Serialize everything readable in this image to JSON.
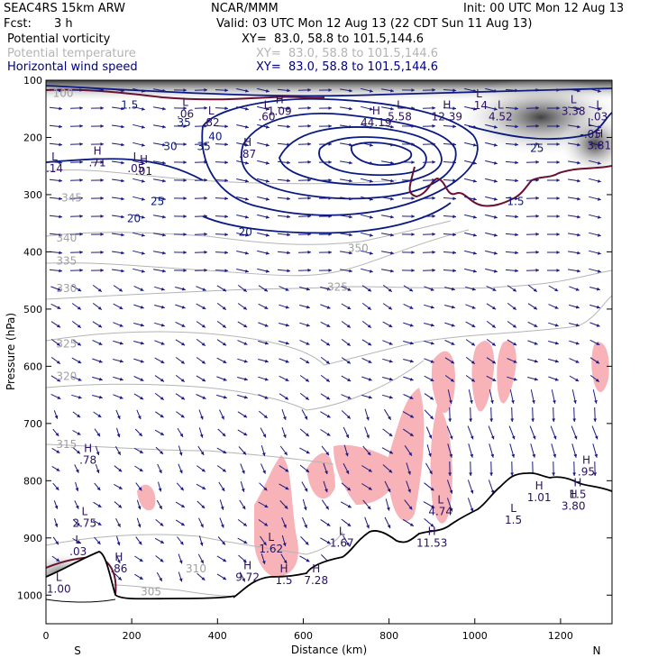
{
  "header": {
    "model": "SEAC4RS 15km ARW",
    "org": "NCAR/MMM",
    "init": "Init: 00 UTC Mon 12 Aug 13",
    "fcst_label": "Fcst:",
    "fcst_value": "3 h",
    "valid": "Valid: 03 UTC Mon 12 Aug 13 (22 CDT Sun 11 Aug 13)",
    "fields": [
      {
        "name": "Potential vorticity",
        "xy": "XY=  83.0, 58.8 to 101.5,144.6",
        "color": "#000000"
      },
      {
        "name": "Potential temperature",
        "xy": "XY=  83.0, 58.8 to 101.5,144.6",
        "color": "#b4b4b4"
      },
      {
        "name": "Horizontal wind speed",
        "xy": "XY=  83.0, 58.8 to 101.5,144.6",
        "color": "#000080"
      }
    ]
  },
  "chart_data": {
    "type": "cross-section",
    "xlabel": "Distance (km)",
    "ylabel": "Pressure (hPa)",
    "xlim": [
      0,
      1320
    ],
    "ylim": [
      1050,
      100
    ],
    "x_ticks": [
      0,
      200,
      400,
      600,
      800,
      1000,
      1200
    ],
    "y_ticks": [
      100,
      200,
      300,
      400,
      500,
      600,
      700,
      800,
      900,
      1000
    ],
    "end_labels": {
      "left": "S",
      "right": "N"
    },
    "colors": {
      "wind_contour": "#0a1a80",
      "theta_contour": "#b4b4b4",
      "pv_contour": "#6a1030",
      "pv_fill": "#f7b3b8",
      "terrain": "#000000",
      "arrow": "#1a1a80"
    },
    "wind_speed_labels": [
      {
        "x": 195,
        "p": 150,
        "text": "1.5"
      },
      {
        "x": 290,
        "p": 222,
        "text": "30"
      },
      {
        "x": 322,
        "p": 180,
        "text": "35"
      },
      {
        "x": 368,
        "p": 222,
        "text": "35"
      },
      {
        "x": 395,
        "p": 205,
        "text": "40"
      },
      {
        "x": 260,
        "p": 318,
        "text": "25"
      },
      {
        "x": 205,
        "p": 348,
        "text": "20"
      },
      {
        "x": 465,
        "p": 372,
        "text": "20"
      },
      {
        "x": 1145,
        "p": 225,
        "text": "25"
      },
      {
        "x": 1095,
        "p": 318,
        "text": "1.5"
      }
    ],
    "theta_labels": [
      {
        "x": 60,
        "p": 312,
        "text": "345"
      },
      {
        "x": 48,
        "p": 382,
        "text": "340"
      },
      {
        "x": 48,
        "p": 422,
        "text": "335"
      },
      {
        "x": 48,
        "p": 470,
        "text": "330"
      },
      {
        "x": 48,
        "p": 567,
        "text": "325"
      },
      {
        "x": 48,
        "p": 624,
        "text": "320"
      },
      {
        "x": 48,
        "p": 743,
        "text": "315"
      },
      {
        "x": 350,
        "p": 960,
        "text": "310"
      },
      {
        "x": 245,
        "p": 1000,
        "text": "305"
      },
      {
        "x": 728,
        "p": 400,
        "text": "350"
      },
      {
        "x": 680,
        "p": 468,
        "text": "325"
      },
      {
        "x": 40,
        "p": 129,
        "text": "100"
      }
    ],
    "extrema": [
      {
        "x": 120,
        "p": 230,
        "mark": "H",
        "value": ".71"
      },
      {
        "x": 210,
        "p": 240,
        "mark": "L",
        "value": ".05"
      },
      {
        "x": 228,
        "p": 245,
        "mark": "H",
        "value": ".01"
      },
      {
        "x": 325,
        "p": 145,
        "mark": "L",
        "value": ".06"
      },
      {
        "x": 385,
        "p": 160,
        "mark": "L",
        "value": ".82"
      },
      {
        "x": 470,
        "p": 215,
        "mark": "H",
        "value": ".87"
      },
      {
        "x": 515,
        "p": 150,
        "mark": "L",
        "value": ".60"
      },
      {
        "x": 545,
        "p": 140,
        "mark": "H",
        "value": "1.09"
      },
      {
        "x": 770,
        "p": 160,
        "mark": "H",
        "value": "44.19"
      },
      {
        "x": 825,
        "p": 150,
        "mark": "L",
        "value": "5.58"
      },
      {
        "x": 935,
        "p": 150,
        "mark": "H",
        "value": "12.39"
      },
      {
        "x": 1010,
        "p": 130,
        "mark": "L",
        "value": ".14"
      },
      {
        "x": 1060,
        "p": 150,
        "mark": "L",
        "value": "4.52"
      },
      {
        "x": 1230,
        "p": 140,
        "mark": "L",
        "value": "3.38"
      },
      {
        "x": 1290,
        "p": 150,
        "mark": "L",
        "value": ".03"
      },
      {
        "x": 1270,
        "p": 180,
        "mark": "L",
        "value": "-.05"
      },
      {
        "x": 1290,
        "p": 200,
        "mark": "H",
        "value": "3.81"
      },
      {
        "x": 20,
        "p": 240,
        "mark": "L",
        "value": ".14"
      },
      {
        "x": 98,
        "p": 750,
        "mark": "H",
        "value": ".78"
      },
      {
        "x": 90,
        "p": 860,
        "mark": "L",
        "value": "2.75"
      },
      {
        "x": 75,
        "p": 910,
        "mark": "L",
        "value": ".03"
      },
      {
        "x": 30,
        "p": 975,
        "mark": "L",
        "value": "1.00"
      },
      {
        "x": 170,
        "p": 940,
        "mark": "H",
        "value": ".86"
      },
      {
        "x": 470,
        "p": 955,
        "mark": "H",
        "value": "9.72"
      },
      {
        "x": 555,
        "p": 960,
        "mark": "H",
        "value": "1.5"
      },
      {
        "x": 630,
        "p": 960,
        "mark": "H",
        "value": "7.28"
      },
      {
        "x": 690,
        "p": 895,
        "mark": "L",
        "value": "1.67"
      },
      {
        "x": 525,
        "p": 905,
        "mark": "L",
        "value": "1.62"
      },
      {
        "x": 900,
        "p": 895,
        "mark": "H",
        "value": "11.53"
      },
      {
        "x": 920,
        "p": 840,
        "mark": "L",
        "value": "4.74"
      },
      {
        "x": 1090,
        "p": 855,
        "mark": "L",
        "value": "1.5"
      },
      {
        "x": 1150,
        "p": 815,
        "mark": "H",
        "value": "1.01"
      },
      {
        "x": 1240,
        "p": 810,
        "mark": "H",
        "value": "1.5"
      },
      {
        "x": 1260,
        "p": 770,
        "mark": "H",
        "value": ".95"
      },
      {
        "x": 1230,
        "p": 830,
        "mark": "H",
        "value": "3.80"
      }
    ]
  }
}
